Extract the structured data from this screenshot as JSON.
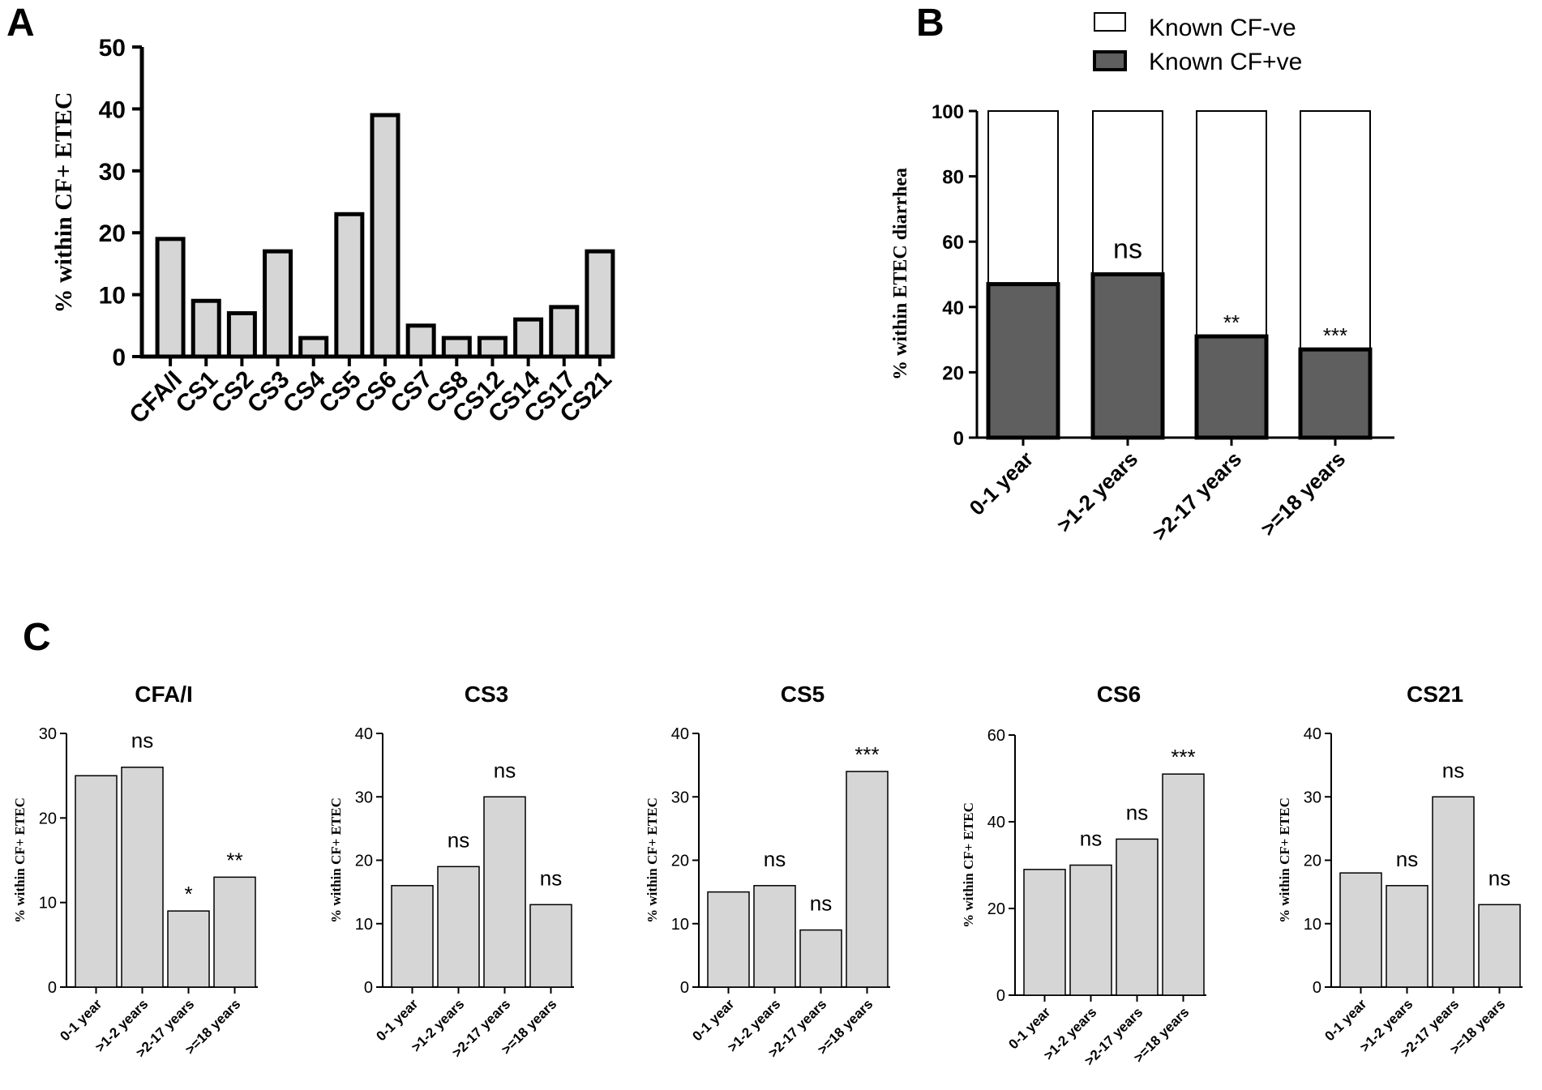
{
  "panel_labels": [
    "A",
    "B",
    "C"
  ],
  "chart_data": [
    {
      "id": "A",
      "type": "bar",
      "title": "",
      "ylabel": "% within CF+ ETEC",
      "xlabel": "",
      "ylim": [
        0,
        50
      ],
      "yticks": [
        "0",
        "10",
        "20",
        "30",
        "40",
        "50"
      ],
      "categories": [
        "CFA/I",
        "CS1",
        "CS2",
        "CS3",
        "CS4",
        "CS5",
        "CS6",
        "CS7",
        "CS8",
        "CS12",
        "CS14",
        "CS17",
        "CS21"
      ],
      "values": [
        19,
        9,
        7,
        17,
        3,
        23,
        39,
        5,
        3,
        3,
        6,
        8,
        17
      ],
      "colors": {
        "bar_fill": "#d6d6d6",
        "bar_stroke": "#000000"
      }
    },
    {
      "id": "B",
      "type": "bar",
      "stacked": true,
      "title": "",
      "ylabel": "% within ETEC diarrhea",
      "xlabel": "",
      "ylim": [
        0,
        100
      ],
      "yticks": [
        "0",
        "20",
        "40",
        "60",
        "80",
        "100"
      ],
      "categories": [
        "0-1 year",
        ">1-2 years",
        ">2-17 years",
        ">=18 years"
      ],
      "series": [
        {
          "name": "Known CF+ve",
          "values": [
            47,
            50,
            31,
            27
          ],
          "color": "#5f5f5f"
        },
        {
          "name": "Known CF-ve",
          "values": [
            53,
            50,
            69,
            73
          ],
          "color": "#ffffff"
        }
      ],
      "legend": {
        "entries": [
          "Known CF-ve",
          "Known CF+ve"
        ],
        "position": "top"
      },
      "annotations": [
        "",
        "ns",
        "**",
        "***"
      ]
    },
    {
      "id": "C-CFA/I",
      "type": "bar",
      "title": "CFA/I",
      "ylabel": "% within CF+ ETEC",
      "ylim": [
        0,
        30
      ],
      "yticks": [
        "0",
        "10",
        "20",
        "30"
      ],
      "categories": [
        "0-1 year",
        ">1-2 years",
        ">2-17 years",
        ">=18 years"
      ],
      "values": [
        25,
        26,
        9,
        13
      ],
      "annotations": [
        "",
        "ns",
        "*",
        "**"
      ]
    },
    {
      "id": "C-CS3",
      "type": "bar",
      "title": "CS3",
      "ylabel": "% within CF+ ETEC",
      "ylim": [
        0,
        40
      ],
      "yticks": [
        "0",
        "10",
        "20",
        "30",
        "40"
      ],
      "categories": [
        "0-1 year",
        ">1-2 years",
        ">2-17 years",
        ">=18 years"
      ],
      "values": [
        16,
        19,
        30,
        13
      ],
      "annotations": [
        "",
        "ns",
        "ns",
        "ns"
      ]
    },
    {
      "id": "C-CS5",
      "type": "bar",
      "title": "CS5",
      "ylabel": "% within CF+ ETEC",
      "ylim": [
        0,
        40
      ],
      "yticks": [
        "0",
        "10",
        "20",
        "30",
        "40"
      ],
      "categories": [
        "0-1 year",
        ">1-2 years",
        ">2-17 years",
        ">=18 years"
      ],
      "values": [
        15,
        16,
        9,
        34
      ],
      "annotations": [
        "",
        "ns",
        "ns",
        "***"
      ]
    },
    {
      "id": "C-CS6",
      "type": "bar",
      "title": "CS6",
      "ylabel": "% within CF+ ETEC",
      "ylim": [
        0,
        60
      ],
      "yticks": [
        "0",
        "20",
        "40",
        "60"
      ],
      "categories": [
        "0-1 year",
        ">1-2 years",
        ">2-17 years",
        ">=18 years"
      ],
      "values": [
        29,
        30,
        36,
        51
      ],
      "annotations": [
        "",
        "ns",
        "ns",
        "***"
      ]
    },
    {
      "id": "C-CS21",
      "type": "bar",
      "title": "CS21",
      "ylabel": "% within CF+ ETEC",
      "ylim": [
        0,
        40
      ],
      "yticks": [
        "0",
        "10",
        "20",
        "30",
        "40"
      ],
      "categories": [
        "0-1 year",
        ">1-2 years",
        ">2-17 years",
        ">=18 years"
      ],
      "values": [
        18,
        16,
        30,
        13
      ],
      "annotations": [
        "",
        "ns",
        "ns",
        "ns"
      ]
    }
  ]
}
